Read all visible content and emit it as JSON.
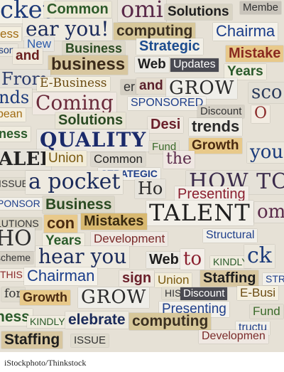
{
  "image": {
    "description_free_caption": "iStockphoto/Thinkstock",
    "clippings": [
      {
        "text": "cket",
        "color": "#1e3a78",
        "bg": "#f3f0e6"
      },
      {
        "text": "Common",
        "color": "#2e5b2a",
        "bg": "#ece8d6"
      },
      {
        "text": "omi",
        "color": "#5a2a4a",
        "bg": "#e9e4dc"
      },
      {
        "text": "Solutions",
        "color": "#1d1d1d",
        "bg": "#d9d4c4"
      },
      {
        "text": "Membe",
        "color": "#333333",
        "bg": "#c9c4bb"
      },
      {
        "text": "ess",
        "color": "#a06a10",
        "bg": "#f4efe0"
      },
      {
        "text": "ear you!",
        "color": "#1a2a5a",
        "bg": "#eeeae0"
      },
      {
        "text": "computing",
        "color": "#3a2f20",
        "bg": "#d7c79a"
      },
      {
        "text": "Chairma",
        "color": "#1a3d8a",
        "bg": "#f5f2ea"
      },
      {
        "text": "New",
        "color": "#2c5aa8",
        "bg": "#e8e6e0"
      },
      {
        "text": "Business",
        "color": "#2a4a22",
        "bg": "#dcd8c8"
      },
      {
        "text": "Strategic",
        "color": "#1c4c8e",
        "bg": "#f2efe6"
      },
      {
        "text": "Mistake",
        "color": "#8a2a20",
        "bg": "#e8c98a"
      },
      {
        "text": "son",
        "color": "#1c3a7a",
        "bg": "#ebe7dc"
      },
      {
        "text": "and",
        "color": "#6a1f1f",
        "bg": "#efe9dc"
      },
      {
        "text": "business",
        "color": "#3b2a1a",
        "bg": "#d8c7a0"
      },
      {
        "text": "Web",
        "color": "#1d1d1d",
        "bg": "#eceae4"
      },
      {
        "text": "Updates",
        "color": "#ffffff",
        "bg": "#4a4a52"
      },
      {
        "text": "Years",
        "color": "#2a5a2a",
        "bg": "#f0ecdf"
      },
      {
        "text": "From",
        "color": "#2a3a6a",
        "bg": "#e4e1d9"
      },
      {
        "text": "E-Business",
        "color": "#6a4a10",
        "bg": "#f4efdf"
      },
      {
        "text": "er",
        "color": "#333333",
        "bg": "#d4cfc3"
      },
      {
        "text": "and",
        "color": "#5a1f2a",
        "bg": "#e5ded0"
      },
      {
        "text": "GROW",
        "color": "#2a2a2a",
        "bg": "#efeee9"
      },
      {
        "text": "sco",
        "color": "#2a3a5a",
        "bg": "#e3dfd5"
      },
      {
        "text": "nds",
        "color": "#1c3a7a",
        "bg": "#ebe7dc"
      },
      {
        "text": "Coming",
        "color": "#6a2a3a",
        "bg": "#f0e8e2"
      },
      {
        "text": "SPONSORED",
        "color": "#1f3f8a",
        "bg": "#f2f0ea"
      },
      {
        "text": "Discount",
        "color": "#333333",
        "bg": "#d6d1c6"
      },
      {
        "text": "O",
        "color": "#8a2a2a",
        "bg": "#f2ece2"
      },
      {
        "text": "bean",
        "color": "#a06a10",
        "bg": "#f4efe0"
      },
      {
        "text": "Solutions",
        "color": "#2a4a22",
        "bg": "#e8e4d4"
      },
      {
        "text": "Desi",
        "color": "#6a1f2a",
        "bg": "#eee8df"
      },
      {
        "text": "trends",
        "color": "#2a2a2a",
        "bg": "#efece4"
      },
      {
        "text": "ness",
        "color": "#2a5a2a",
        "bg": "#f0ecdf"
      },
      {
        "text": "QUALITY",
        "color": "#1a2a6a",
        "bg": "#ece9e2"
      },
      {
        "text": "Fund",
        "color": "#3a6a2a",
        "bg": "#e3ded2"
      },
      {
        "text": "Growth",
        "color": "#4a2a10",
        "bg": "#e8c98a"
      },
      {
        "text": "you",
        "color": "#1a3a7a",
        "bg": "#ebe7dc"
      },
      {
        "text": "ALEI",
        "color": "#222222",
        "bg": "#e6e3db"
      },
      {
        "text": "Union",
        "color": "#7a5a10",
        "bg": "#f2ecd8"
      },
      {
        "text": "Common",
        "color": "#222222",
        "bg": "#dcd8ce"
      },
      {
        "text": "the",
        "color": "#5a2a4a",
        "bg": "#efe7e2"
      },
      {
        "text": "STRATEGIC",
        "color": "#1f3f8a",
        "bg": "#f2f0ea"
      },
      {
        "text": "ISSUE",
        "color": "#333333",
        "bg": "#e0dccf"
      },
      {
        "text": "a pocket",
        "color": "#1a2a5a",
        "bg": "#eeeae0"
      },
      {
        "text": "Ho",
        "color": "#2a2a2a",
        "bg": "#e6e3db"
      },
      {
        "text": "HOW TO",
        "color": "#3a2a4a",
        "bg": "#e5e1d8"
      },
      {
        "text": "Presenting",
        "color": "#8a1f2f",
        "bg": "#f3eee8"
      },
      {
        "text": "PONSOR",
        "color": "#1f3f8a",
        "bg": "#f2f0ea"
      },
      {
        "text": "Business",
        "color": "#2a4a22",
        "bg": "#dcd8c8"
      },
      {
        "text": "TALENT",
        "color": "#1d1d1d",
        "bg": "#f2efe8"
      },
      {
        "text": "om",
        "color": "#5a2a4a",
        "bg": "#e9e4dc"
      },
      {
        "text": "LUTIONS",
        "color": "#333333",
        "bg": "#d9d4c4"
      },
      {
        "text": "con",
        "color": "#4a2a10",
        "bg": "#e8c98a"
      },
      {
        "text": "Mistakes",
        "color": "#3a2a10",
        "bg": "#d8b870"
      },
      {
        "text": "Years",
        "color": "#2a5a2a",
        "bg": "#f0ecdf"
      },
      {
        "text": "Development",
        "color": "#7a2a2a",
        "bg": "#efe8e2"
      },
      {
        "text": "Structural",
        "color": "#1f3f8a",
        "bg": "#f2f0ea"
      },
      {
        "text": "HO",
        "color": "#2a2a2a",
        "bg": "#e6e3db"
      },
      {
        "text": "scheme",
        "color": "#333333",
        "bg": "#d6d1c6"
      },
      {
        "text": "hear you",
        "color": "#1a2a5a",
        "bg": "#eeeae0"
      },
      {
        "text": "Web",
        "color": "#1d1d1d",
        "bg": "#eceae4"
      },
      {
        "text": "to",
        "color": "#8a1f2f",
        "bg": "#f3eee8"
      },
      {
        "text": "KINDLY",
        "color": "#2a5a2a",
        "bg": "#f0ecdf"
      },
      {
        "text": "ck",
        "color": "#1a3a7a",
        "bg": "#ebe7dc"
      },
      {
        "text": "THIS",
        "color": "#8a2a2a",
        "bg": "#f2ece2"
      },
      {
        "text": "Chairman",
        "color": "#1a3d8a",
        "bg": "#f5f2ea"
      },
      {
        "text": "sign",
        "color": "#6a1f2a",
        "bg": "#eee8df"
      },
      {
        "text": "Union",
        "color": "#7a5a10",
        "bg": "#f2ecd8"
      },
      {
        "text": "Staffing",
        "color": "#1d1d1d",
        "bg": "#d8c7a0"
      },
      {
        "text": "STR",
        "color": "#1f3f8a",
        "bg": "#f2f0ea"
      },
      {
        "text": "for",
        "color": "#333333",
        "bg": "#e0dccf"
      },
      {
        "text": "Growth",
        "color": "#4a2a10",
        "bg": "#e8c98a"
      },
      {
        "text": "GROW",
        "color": "#2a2a2a",
        "bg": "#efeee9"
      },
      {
        "text": "HIS",
        "color": "#333333",
        "bg": "#e0dccf"
      },
      {
        "text": "Discount",
        "color": "#ffffff",
        "bg": "#4a4a52"
      },
      {
        "text": "E-Busi",
        "color": "#6a4a10",
        "bg": "#f4efdf"
      },
      {
        "text": "Presenting",
        "color": "#1f3f8a",
        "bg": "#f3f1ec"
      },
      {
        "text": "Fund",
        "color": "#3a6a2a",
        "bg": "#e3ded2"
      },
      {
        "text": "ness",
        "color": "#2a5a2a",
        "bg": "#f0ecdf"
      },
      {
        "text": "KINDLY",
        "color": "#2a5a2a",
        "bg": "#f0ecdf"
      },
      {
        "text": "elebrate",
        "color": "#1a2a5a",
        "bg": "#eeeae0"
      },
      {
        "text": "computing",
        "color": "#3a2f20",
        "bg": "#d7c79a"
      },
      {
        "text": "tructu",
        "color": "#1f3f8a",
        "bg": "#f2f0ea"
      },
      {
        "text": "Staffing",
        "color": "#1d1d1d",
        "bg": "#d8c7a0"
      },
      {
        "text": "ISSUE",
        "color": "#333333",
        "bg": "#e0dccf"
      },
      {
        "text": "Developmen",
        "color": "#7a2a2a",
        "bg": "#efe8e2"
      }
    ]
  }
}
